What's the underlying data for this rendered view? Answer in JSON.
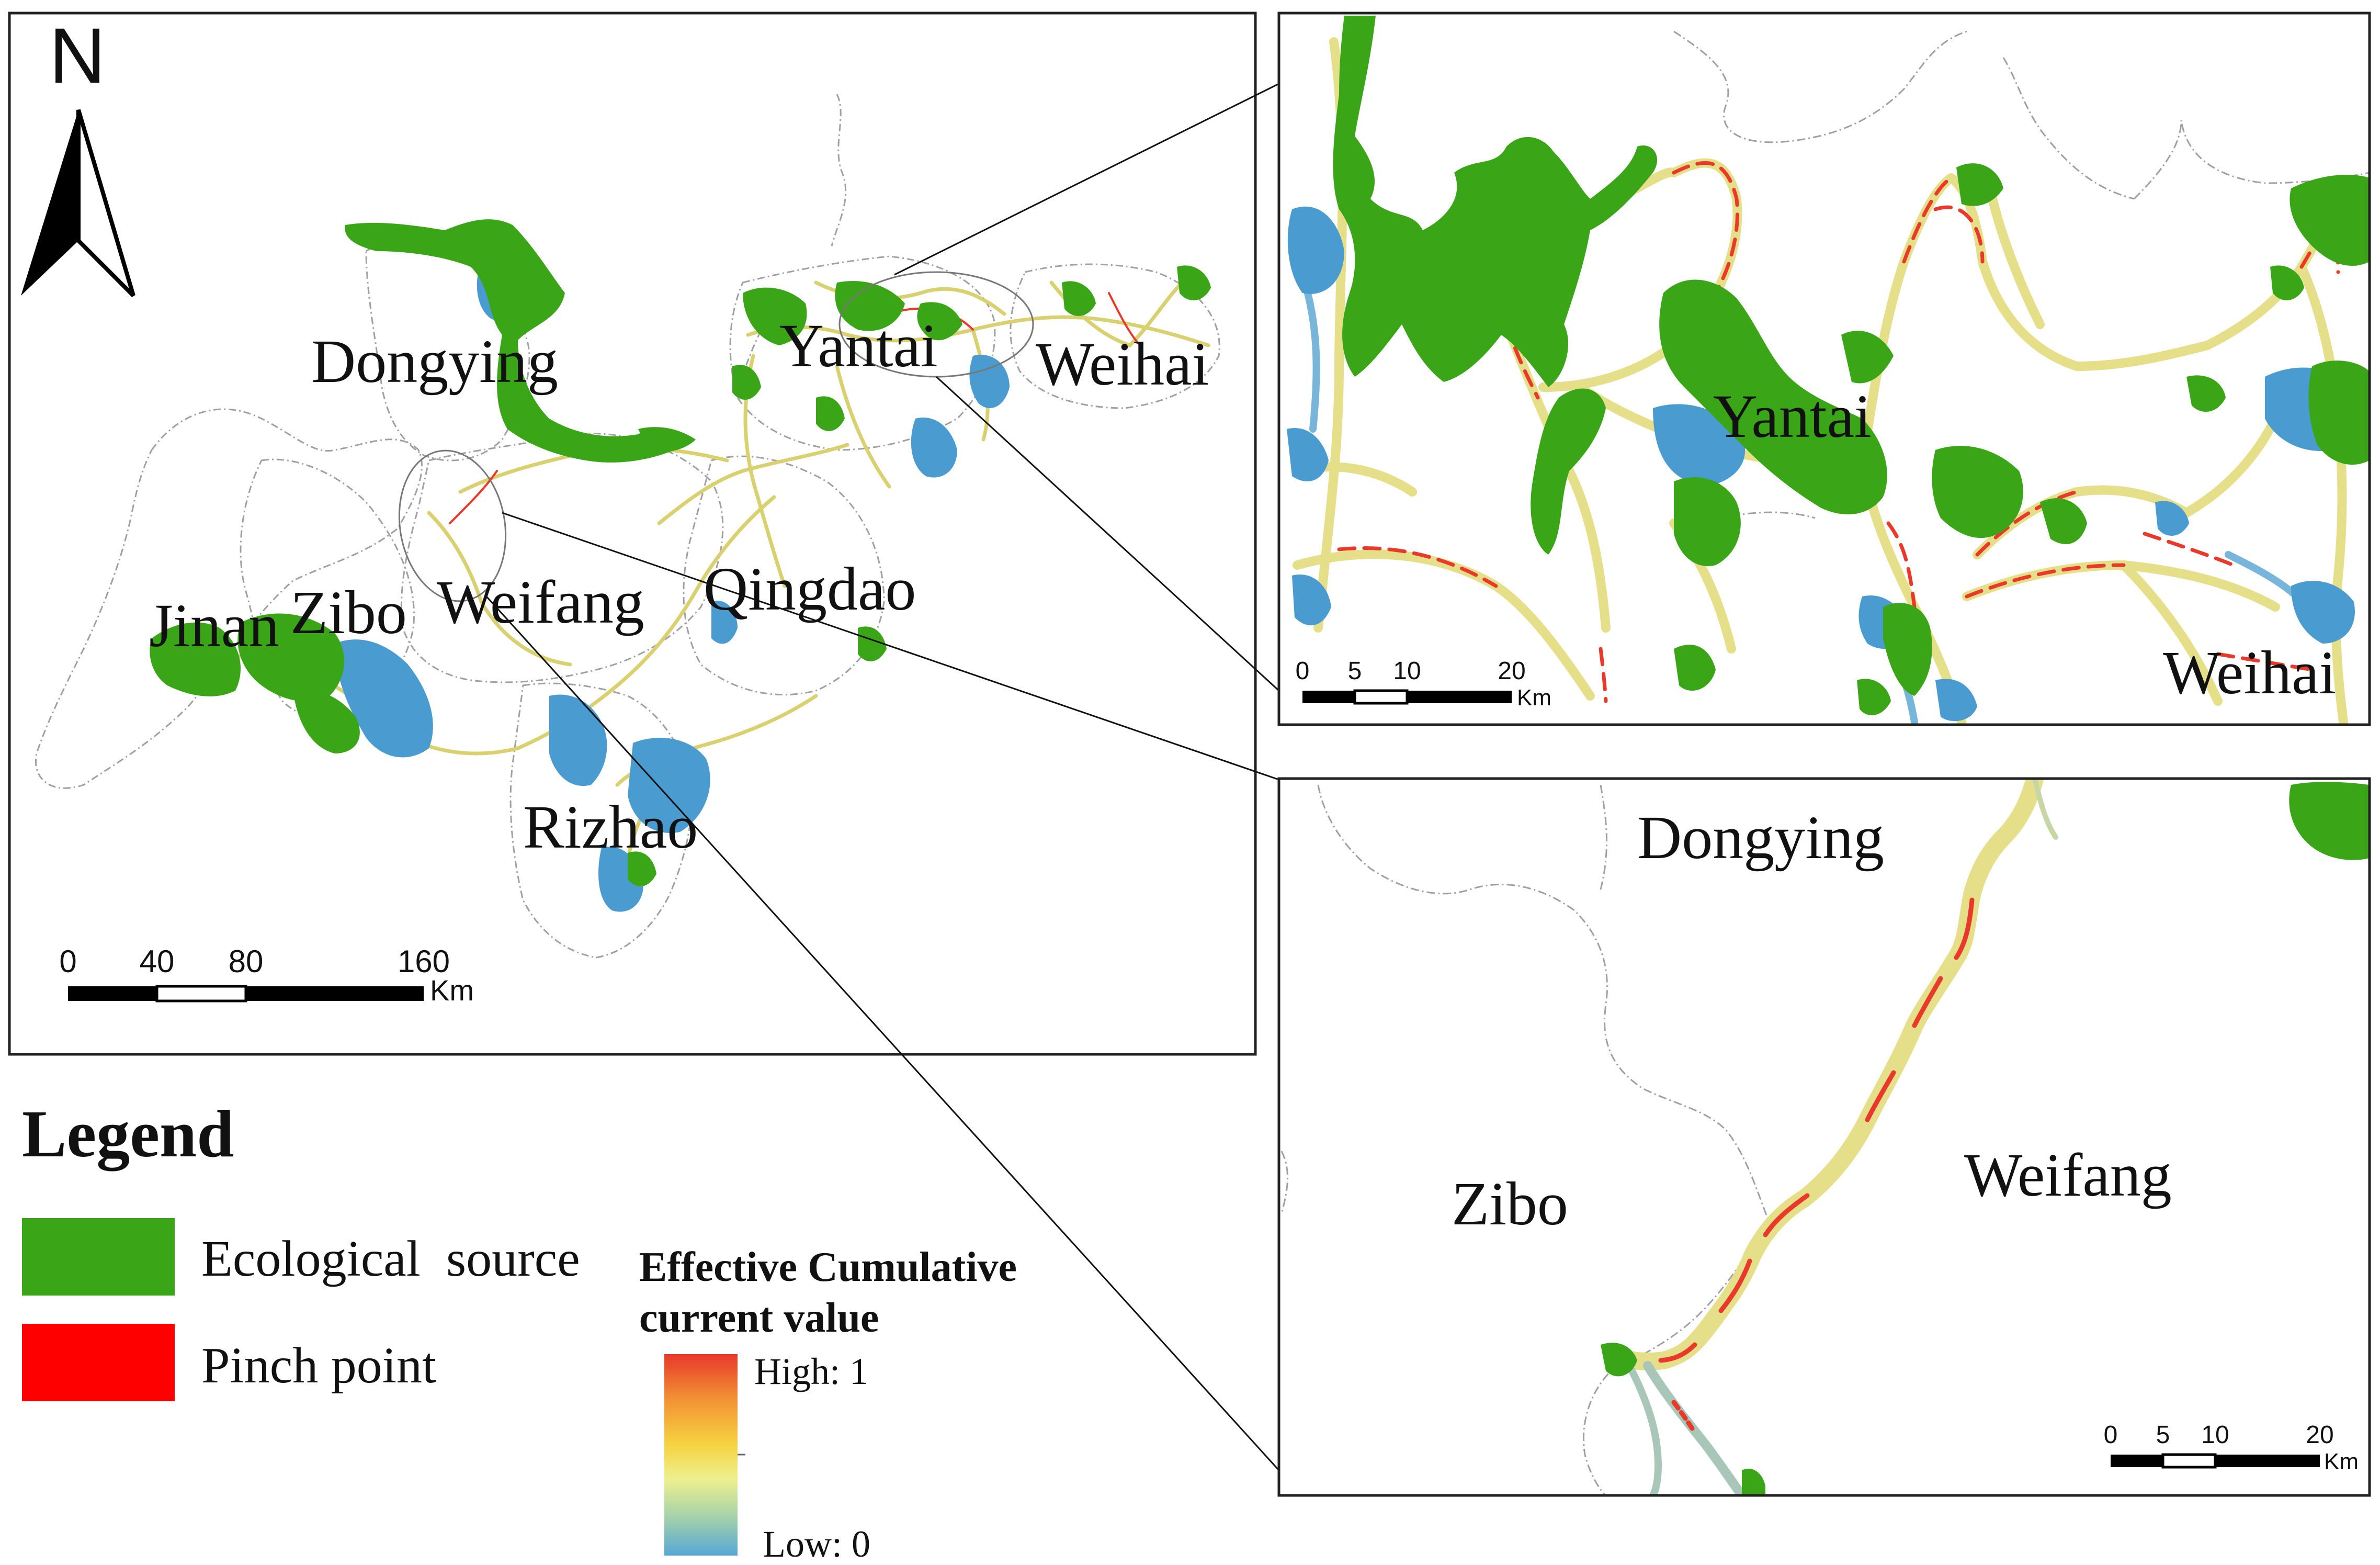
{
  "north_arrow": {
    "label": "N"
  },
  "main_map": {
    "places": {
      "dongying": "Dongying",
      "yantai": "Yantai",
      "weihai": "Weihai",
      "jinan": "Jinan",
      "zibo": "Zibo",
      "weifang": "Weifang",
      "qingdao": "Qingdao",
      "rizhao": "Rizhao"
    },
    "scale_bar": {
      "ticks": [
        "0",
        "40",
        "80",
        "160"
      ],
      "unit": "Km"
    }
  },
  "inset_top": {
    "places": {
      "yantai": "Yantai",
      "weihai": "Weihai"
    },
    "scale_bar": {
      "ticks": [
        "0",
        "5",
        "10",
        "20"
      ],
      "unit": "Km"
    }
  },
  "inset_bottom": {
    "places": {
      "dongying": "Dongying",
      "zibo": "Zibo",
      "weifang": "Weifang"
    },
    "scale_bar": {
      "ticks": [
        "0",
        "5",
        "10",
        "20"
      ],
      "unit": "Km"
    }
  },
  "legend": {
    "title": "Legend",
    "items": [
      {
        "label": "Ecological  source",
        "color": "#3aa617"
      },
      {
        "label": "Pinch point",
        "color": "#ff0000"
      }
    ],
    "gradient": {
      "title_line1": "Effective Cumulative",
      "title_line2": "current value",
      "high_label": "High: 1",
      "low_label": "Low: 0",
      "colors": [
        "#e8392a",
        "#f29035",
        "#f5d340",
        "#eef08e",
        "#a8d3a8",
        "#56a8d6"
      ]
    }
  },
  "colors": {
    "ecological_source": "#3aa617",
    "pinch_point": "#ff0000",
    "corridor_high": "#e8392a",
    "corridor_mid": "#f0e070",
    "corridor_low": "#5fa8d3",
    "boundary": "#a0a0a0"
  }
}
